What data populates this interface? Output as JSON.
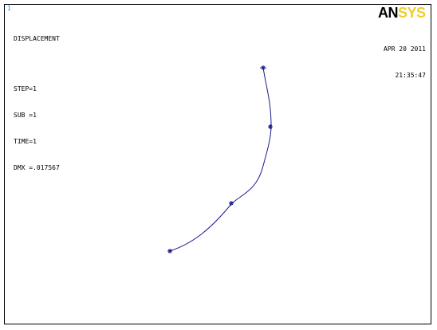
{
  "window": {
    "number": "1"
  },
  "result": {
    "title": "DISPLACEMENT",
    "step": "STEP=1",
    "sub": "SUB =1",
    "time": "TIME=1",
    "dmx": "DMX =.017567"
  },
  "logo": {
    "part1": "AN",
    "part2": "SYS",
    "color_part1": "#000000",
    "color_part2": "#f2cc2a"
  },
  "timestamp": {
    "date": "APR 20 2011",
    "time": "21:35:47"
  },
  "plot": {
    "curve_color": "#1a1a8c",
    "node_marker": "*",
    "node_count": 5
  }
}
